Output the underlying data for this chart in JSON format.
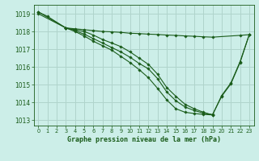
{
  "title": "Graphe pression niveau de la mer (hPa)",
  "bg_color": "#cceee8",
  "grid_color": "#b0d4cc",
  "line_color": "#1a5c1a",
  "marker_color": "#1a5c1a",
  "xlim": [
    -0.5,
    23.5
  ],
  "ylim": [
    1012.7,
    1019.5
  ],
  "yticks": [
    1013,
    1014,
    1015,
    1016,
    1017,
    1018,
    1019
  ],
  "xticks": [
    0,
    1,
    2,
    3,
    4,
    5,
    6,
    7,
    8,
    9,
    10,
    11,
    12,
    13,
    14,
    15,
    16,
    17,
    18,
    19,
    20,
    21,
    22,
    23
  ],
  "series": [
    {
      "x": [
        0,
        1,
        3,
        4,
        5,
        6,
        7,
        8,
        9,
        10,
        11,
        12,
        13,
        14,
        15,
        16,
        17,
        18,
        19,
        22,
        23
      ],
      "y": [
        1019.1,
        1018.85,
        1018.2,
        1018.15,
        1018.1,
        1018.05,
        1018.0,
        1017.98,
        1017.95,
        1017.9,
        1017.88,
        1017.85,
        1017.83,
        1017.8,
        1017.78,
        1017.75,
        1017.73,
        1017.7,
        1017.68,
        1017.78,
        1017.82
      ]
    },
    {
      "x": [
        0,
        3,
        4,
        5,
        6,
        7,
        8,
        9,
        10,
        11,
        12,
        13,
        14,
        15,
        16,
        17,
        18,
        19,
        20,
        21,
        22,
        23
      ],
      "y": [
        1019.1,
        1018.2,
        1018.1,
        1018.0,
        1017.8,
        1017.55,
        1017.35,
        1017.15,
        1016.85,
        1016.5,
        1016.15,
        1015.6,
        1014.85,
        1014.35,
        1013.9,
        1013.65,
        1013.45,
        1013.3,
        1014.4,
        1015.1,
        1016.3,
        1017.82
      ]
    },
    {
      "x": [
        0,
        3,
        4,
        5,
        6,
        7,
        8,
        9,
        10,
        11,
        12,
        13,
        14,
        15,
        16,
        17,
        18,
        19,
        20,
        21,
        22,
        23
      ],
      "y": [
        1019.0,
        1018.2,
        1018.05,
        1017.85,
        1017.6,
        1017.35,
        1017.1,
        1016.85,
        1016.55,
        1016.2,
        1015.9,
        1015.35,
        1014.6,
        1014.1,
        1013.75,
        1013.55,
        1013.4,
        1013.32,
        1014.35,
        1015.05,
        1016.25,
        1017.82
      ]
    },
    {
      "x": [
        3,
        4,
        5,
        6,
        7,
        8,
        9,
        10,
        11,
        12,
        13,
        14,
        15,
        16,
        17,
        18,
        19
      ],
      "y": [
        1018.2,
        1018.0,
        1017.75,
        1017.45,
        1017.2,
        1016.95,
        1016.6,
        1016.25,
        1015.85,
        1015.4,
        1014.8,
        1014.15,
        1013.65,
        1013.45,
        1013.38,
        1013.33,
        1013.3
      ]
    }
  ]
}
